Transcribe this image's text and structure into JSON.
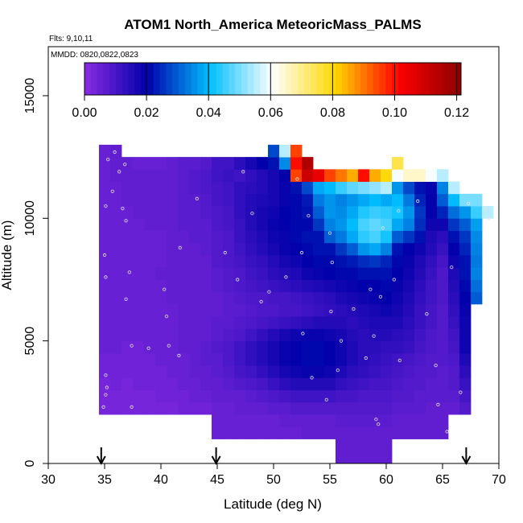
{
  "chart_data": {
    "type": "heatmap",
    "title": "ATOM1 North_America MeteoricMass_PALMS",
    "flights_text": "Flts: 9,10,11",
    "dates_text": "MMDD: 0820,0822,0823",
    "xlabel": "Latitude (deg N)",
    "ylabel": "Altitude (m)",
    "xlim": [
      30,
      70
    ],
    "ylim": [
      0,
      17000
    ],
    "x_ticks": [
      "30",
      "35",
      "40",
      "45",
      "50",
      "55",
      "60",
      "65",
      "70"
    ],
    "y_ticks": [
      "0",
      "5000",
      "10000",
      "15000"
    ],
    "colorbar": {
      "range": [
        0,
        0.1214
      ],
      "ticks": [
        "0.00",
        "0.02",
        "0.04",
        "0.06",
        "0.08",
        "0.10",
        "0.12"
      ],
      "colors": [
        "#8a2be2",
        "#0000aa",
        "#00bfff",
        "#ffffff",
        "#ffd700",
        "#ff0000",
        "#8b0000"
      ]
    },
    "arrow_latitudes": [
      34.7,
      44.9,
      67.1
    ],
    "cell_width_deg": 1,
    "cell_height_m": 500,
    "columns": [
      {
        "lat": 35,
        "bottom": 2000,
        "values": [
          0.003,
          0.003,
          0.003,
          0.004,
          0.004,
          0.005,
          0.005,
          0.005,
          0.005,
          0.005,
          0.005,
          0.005,
          0.005,
          0.005,
          0.005,
          0.005,
          0.005,
          0.005,
          0.005,
          0.005,
          0.005,
          0.005
        ]
      },
      {
        "lat": 36,
        "bottom": 2000,
        "values": [
          0.003,
          0.003,
          0.004,
          0.004,
          0.004,
          0.005,
          0.005,
          0.005,
          0.005,
          0.005,
          0.005,
          0.005,
          0.005,
          0.005,
          0.005,
          0.005,
          0.005,
          0.005,
          0.005,
          0.006,
          0.006,
          0.006
        ]
      },
      {
        "lat": 37,
        "bottom": 2000,
        "values": [
          0.003,
          0.003,
          0.003,
          0.004,
          0.004,
          0.004,
          0.005,
          0.005,
          0.005,
          0.005,
          0.005,
          0.005,
          0.005,
          0.005,
          0.005,
          0.005,
          0.005,
          0.006,
          0.006,
          0.006,
          0.006
        ]
      },
      {
        "lat": 38,
        "bottom": 2000,
        "values": [
          0.003,
          0.003,
          0.004,
          0.004,
          0.004,
          0.004,
          0.005,
          0.005,
          0.005,
          0.005,
          0.005,
          0.005,
          0.005,
          0.005,
          0.005,
          0.005,
          0.006,
          0.006,
          0.006,
          0.006,
          0.005
        ]
      },
      {
        "lat": 39,
        "bottom": 2000,
        "values": [
          0.003,
          0.003,
          0.004,
          0.004,
          0.004,
          0.005,
          0.005,
          0.005,
          0.005,
          0.005,
          0.005,
          0.005,
          0.005,
          0.005,
          0.005,
          0.006,
          0.006,
          0.006,
          0.006,
          0.006,
          0.005
        ]
      },
      {
        "lat": 40,
        "bottom": 2000,
        "values": [
          0.003,
          0.004,
          0.004,
          0.004,
          0.005,
          0.005,
          0.005,
          0.005,
          0.005,
          0.005,
          0.005,
          0.006,
          0.005,
          0.005,
          0.005,
          0.006,
          0.006,
          0.006,
          0.006,
          0.006,
          0.005
        ]
      },
      {
        "lat": 41,
        "bottom": 2000,
        "values": [
          0.003,
          0.004,
          0.004,
          0.005,
          0.005,
          0.005,
          0.005,
          0.005,
          0.005,
          0.006,
          0.006,
          0.006,
          0.006,
          0.006,
          0.006,
          0.006,
          0.006,
          0.006,
          0.006,
          0.006,
          0.006
        ]
      },
      {
        "lat": 42,
        "bottom": 2000,
        "values": [
          0.004,
          0.004,
          0.005,
          0.005,
          0.005,
          0.006,
          0.006,
          0.006,
          0.006,
          0.006,
          0.006,
          0.006,
          0.006,
          0.006,
          0.006,
          0.007,
          0.007,
          0.007,
          0.007,
          0.007,
          0.007
        ]
      },
      {
        "lat": 43,
        "bottom": 2000,
        "values": [
          0.004,
          0.005,
          0.005,
          0.006,
          0.006,
          0.006,
          0.006,
          0.006,
          0.006,
          0.006,
          0.006,
          0.006,
          0.006,
          0.006,
          0.007,
          0.007,
          0.007,
          0.007,
          0.008,
          0.008,
          0.007
        ]
      },
      {
        "lat": 44,
        "bottom": 2000,
        "values": [
          0.004,
          0.005,
          0.006,
          0.006,
          0.007,
          0.007,
          0.006,
          0.006,
          0.006,
          0.006,
          0.006,
          0.006,
          0.006,
          0.007,
          0.007,
          0.007,
          0.008,
          0.008,
          0.009,
          0.009,
          0.008
        ]
      },
      {
        "lat": 45,
        "bottom": 1000,
        "values": [
          0.005,
          0.005,
          0.005,
          0.006,
          0.006,
          0.007,
          0.007,
          0.008,
          0.007,
          0.007,
          0.006,
          0.006,
          0.007,
          0.007,
          0.008,
          0.008,
          0.008,
          0.009,
          0.009,
          0.01,
          0.01,
          0.011,
          0.011
        ]
      },
      {
        "lat": 46,
        "bottom": 1000,
        "values": [
          0.005,
          0.005,
          0.005,
          0.006,
          0.007,
          0.008,
          0.009,
          0.009,
          0.008,
          0.007,
          0.007,
          0.007,
          0.008,
          0.008,
          0.009,
          0.009,
          0.009,
          0.01,
          0.01,
          0.011,
          0.011,
          0.012,
          0.011
        ]
      },
      {
        "lat": 47,
        "bottom": 1000,
        "values": [
          0.005,
          0.005,
          0.006,
          0.006,
          0.008,
          0.01,
          0.011,
          0.011,
          0.009,
          0.008,
          0.007,
          0.008,
          0.009,
          0.009,
          0.01,
          0.011,
          0.012,
          0.012,
          0.013,
          0.013,
          0.013,
          0.011,
          0.014
        ]
      },
      {
        "lat": 48,
        "bottom": 1000,
        "values": [
          0.005,
          0.005,
          0.006,
          0.007,
          0.009,
          0.011,
          0.013,
          0.013,
          0.011,
          0.009,
          0.008,
          0.009,
          0.01,
          0.011,
          0.012,
          0.013,
          0.014,
          0.015,
          0.015,
          0.015,
          0.014,
          0.013,
          0.017
        ]
      },
      {
        "lat": 49,
        "bottom": 1000,
        "values": [
          0.005,
          0.005,
          0.006,
          0.008,
          0.01,
          0.013,
          0.015,
          0.015,
          0.013,
          0.01,
          0.009,
          0.009,
          0.011,
          0.012,
          0.013,
          0.015,
          0.016,
          0.017,
          0.017,
          0.016,
          0.015,
          0.015,
          0.02
        ]
      },
      {
        "lat": 50,
        "bottom": 1000,
        "values": [
          0.005,
          0.005,
          0.007,
          0.009,
          0.012,
          0.015,
          0.017,
          0.017,
          0.015,
          0.011,
          0.009,
          0.01,
          0.012,
          0.014,
          0.015,
          0.017,
          0.018,
          0.019,
          0.018,
          0.017,
          0.017,
          0.017,
          0.022,
          0.028
        ]
      },
      {
        "lat": 51,
        "bottom": 1000,
        "values": [
          0.005,
          0.006,
          0.007,
          0.01,
          0.014,
          0.017,
          0.019,
          0.019,
          0.017,
          0.012,
          0.01,
          0.01,
          0.013,
          0.015,
          0.017,
          0.019,
          0.019,
          0.02,
          0.02,
          0.019,
          0.019,
          0.02,
          0.035,
          0.055
        ]
      },
      {
        "lat": 52,
        "bottom": 1000,
        "values": [
          0.005,
          0.006,
          0.008,
          0.011,
          0.015,
          0.018,
          0.02,
          0.02,
          0.018,
          0.013,
          0.01,
          0.011,
          0.014,
          0.016,
          0.018,
          0.02,
          0.021,
          0.021,
          0.021,
          0.021,
          0.022,
          0.095,
          0.1,
          0.095
        ]
      },
      {
        "lat": 53,
        "bottom": 1000,
        "values": [
          0.006,
          0.006,
          0.008,
          0.011,
          0.015,
          0.019,
          0.021,
          0.021,
          0.019,
          0.014,
          0.011,
          0.012,
          0.015,
          0.018,
          0.02,
          0.021,
          0.022,
          0.021,
          0.022,
          0.023,
          0.028,
          0.11,
          0.115
        ]
      },
      {
        "lat": 54,
        "bottom": 1000,
        "values": [
          0.006,
          0.006,
          0.008,
          0.011,
          0.015,
          0.019,
          0.021,
          0.021,
          0.019,
          0.015,
          0.012,
          0.013,
          0.016,
          0.019,
          0.021,
          0.022,
          0.022,
          0.026,
          0.03,
          0.033,
          0.038,
          0.105
        ]
      },
      {
        "lat": 55,
        "bottom": 1000,
        "values": [
          0.006,
          0.006,
          0.008,
          0.011,
          0.015,
          0.018,
          0.02,
          0.02,
          0.018,
          0.015,
          0.013,
          0.014,
          0.017,
          0.02,
          0.021,
          0.022,
          0.03,
          0.034,
          0.036,
          0.036,
          0.04,
          0.095
        ]
      },
      {
        "lat": 56,
        "bottom": 0,
        "values": [
          0.006,
          0.006,
          0.006,
          0.007,
          0.008,
          0.01,
          0.013,
          0.016,
          0.018,
          0.018,
          0.017,
          0.015,
          0.014,
          0.016,
          0.018,
          0.021,
          0.022,
          0.026,
          0.033,
          0.036,
          0.035,
          0.034,
          0.045,
          0.09
        ]
      },
      {
        "lat": 57,
        "bottom": 0,
        "values": [
          0.006,
          0.006,
          0.006,
          0.007,
          0.008,
          0.01,
          0.012,
          0.014,
          0.016,
          0.016,
          0.015,
          0.014,
          0.015,
          0.017,
          0.019,
          0.021,
          0.023,
          0.03,
          0.038,
          0.04,
          0.038,
          0.036,
          0.048,
          0.085
        ]
      },
      {
        "lat": 58,
        "bottom": 0,
        "values": [
          0.006,
          0.006,
          0.006,
          0.007,
          0.008,
          0.009,
          0.011,
          0.013,
          0.014,
          0.014,
          0.014,
          0.015,
          0.016,
          0.018,
          0.02,
          0.022,
          0.025,
          0.036,
          0.044,
          0.046,
          0.043,
          0.038,
          0.05,
          0.1
        ]
      },
      {
        "lat": 59,
        "bottom": 0,
        "values": [
          0.006,
          0.006,
          0.006,
          0.007,
          0.008,
          0.009,
          0.01,
          0.012,
          0.013,
          0.014,
          0.015,
          0.016,
          0.017,
          0.019,
          0.02,
          0.022,
          0.026,
          0.038,
          0.046,
          0.048,
          0.045,
          0.04,
          0.052,
          0.085
        ]
      },
      {
        "lat": 60,
        "bottom": 0,
        "values": [
          0.006,
          0.006,
          0.006,
          0.007,
          0.008,
          0.009,
          0.01,
          0.011,
          0.012,
          0.013,
          0.015,
          0.016,
          0.018,
          0.02,
          0.021,
          0.022,
          0.024,
          0.034,
          0.042,
          0.046,
          0.044,
          0.038,
          0.055,
          0.08
        ]
      },
      {
        "lat": 61,
        "bottom": 1000,
        "values": [
          0.006,
          0.006,
          0.007,
          0.008,
          0.009,
          0.01,
          0.011,
          0.013,
          0.014,
          0.016,
          0.017,
          0.018,
          0.019,
          0.02,
          0.021,
          0.022,
          0.03,
          0.038,
          0.042,
          0.04,
          0.036,
          0.06,
          0.075
        ]
      },
      {
        "lat": 62,
        "bottom": 1000,
        "values": [
          0.006,
          0.006,
          0.007,
          0.008,
          0.008,
          0.009,
          0.01,
          0.012,
          0.013,
          0.014,
          0.015,
          0.016,
          0.017,
          0.018,
          0.019,
          0.02,
          0.026,
          0.034,
          0.036,
          0.033,
          0.028,
          0.065
        ]
      },
      {
        "lat": 63,
        "bottom": 1000,
        "values": [
          0.006,
          0.006,
          0.007,
          0.007,
          0.008,
          0.008,
          0.009,
          0.01,
          0.011,
          0.012,
          0.012,
          0.013,
          0.014,
          0.015,
          0.016,
          0.018,
          0.022,
          0.025,
          0.026,
          0.024,
          0.022,
          0.065
        ]
      },
      {
        "lat": 64,
        "bottom": 1000,
        "values": [
          0.006,
          0.006,
          0.006,
          0.007,
          0.007,
          0.008,
          0.008,
          0.009,
          0.009,
          0.01,
          0.01,
          0.011,
          0.011,
          0.012,
          0.013,
          0.015,
          0.016,
          0.018,
          0.02,
          0.02,
          0.019,
          0.06
        ]
      },
      {
        "lat": 65,
        "bottom": 1000,
        "values": [
          0.006,
          0.006,
          0.006,
          0.007,
          0.007,
          0.007,
          0.008,
          0.008,
          0.008,
          0.008,
          0.008,
          0.009,
          0.009,
          0.009,
          0.01,
          0.012,
          0.014,
          0.018,
          0.024,
          0.03,
          0.034,
          0.055
        ]
      },
      {
        "lat": 66,
        "bottom": 2000,
        "values": [
          0.006,
          0.007,
          0.008,
          0.008,
          0.009,
          0.01,
          0.011,
          0.012,
          0.013,
          0.014,
          0.015,
          0.016,
          0.018,
          0.02,
          0.022,
          0.026,
          0.032,
          0.04,
          0.055
        ]
      },
      {
        "lat": 67,
        "bottom": 2000,
        "values": [
          0.008,
          0.01,
          0.012,
          0.014,
          0.016,
          0.018,
          0.018,
          0.018,
          0.019,
          0.02,
          0.021,
          0.022,
          0.022,
          0.024,
          0.026,
          0.03,
          0.036,
          0.05
        ]
      },
      {
        "lat": 68,
        "bottom": 6500,
        "values": [
          0.03,
          0.032,
          0.034,
          0.033,
          0.034,
          0.035,
          0.037,
          0.045,
          0.05
        ]
      },
      {
        "lat": 69,
        "bottom": 10000,
        "values": [
          0.055
        ]
      }
    ],
    "sample_points": [
      [
        35.3,
        12.4
      ],
      [
        35.9,
        12.7
      ],
      [
        36.8,
        12.2
      ],
      [
        36.3,
        11.9
      ],
      [
        35.7,
        11.1
      ],
      [
        35.1,
        10.5
      ],
      [
        36.6,
        10.4
      ],
      [
        36.9,
        9.9
      ],
      [
        35.0,
        8.5
      ],
      [
        35.1,
        7.6
      ],
      [
        37.2,
        7.8
      ],
      [
        36.9,
        6.7
      ],
      [
        40.3,
        7.1
      ],
      [
        40.5,
        6.0
      ],
      [
        37.4,
        4.8
      ],
      [
        38.9,
        4.7
      ],
      [
        40.7,
        4.8
      ],
      [
        41.6,
        4.4
      ],
      [
        35.1,
        3.6
      ],
      [
        35.2,
        3.1
      ],
      [
        35.1,
        2.8
      ],
      [
        34.9,
        2.3
      ],
      [
        37.4,
        2.3
      ],
      [
        41.7,
        8.8
      ],
      [
        43.2,
        10.8
      ],
      [
        45.7,
        8.6
      ],
      [
        46.8,
        7.5
      ],
      [
        47.3,
        11.9
      ],
      [
        48.1,
        10.2
      ],
      [
        48.9,
        6.6
      ],
      [
        49.6,
        7.0
      ],
      [
        51.1,
        7.6
      ],
      [
        52.1,
        11.6
      ],
      [
        52.5,
        8.6
      ],
      [
        53.1,
        10.1
      ],
      [
        55.0,
        9.4
      ],
      [
        55.1,
        6.2
      ],
      [
        56.0,
        5.0
      ],
      [
        55.2,
        8.2
      ],
      [
        55.7,
        3.8
      ],
      [
        54.7,
        2.6
      ],
      [
        57.1,
        6.3
      ],
      [
        58.6,
        7.1
      ],
      [
        58.9,
        5.2
      ],
      [
        59.5,
        6.8
      ],
      [
        60.7,
        7.5
      ],
      [
        61.1,
        10.3
      ],
      [
        61.2,
        4.2
      ],
      [
        62.8,
        10.7
      ],
      [
        63.6,
        6.1
      ],
      [
        64.4,
        4.0
      ],
      [
        64.6,
        2.4
      ],
      [
        65.4,
        1.3
      ],
      [
        59.1,
        1.8
      ],
      [
        59.3,
        1.6
      ],
      [
        66.6,
        2.9
      ],
      [
        65.8,
        8.0
      ],
      [
        68.8,
        10.4
      ],
      [
        67.3,
        10.6
      ],
      [
        69.1,
        10.0
      ],
      [
        59.7,
        9.6
      ],
      [
        58.2,
        4.3
      ],
      [
        52.6,
        5.3
      ],
      [
        53.4,
        3.5
      ]
    ]
  }
}
